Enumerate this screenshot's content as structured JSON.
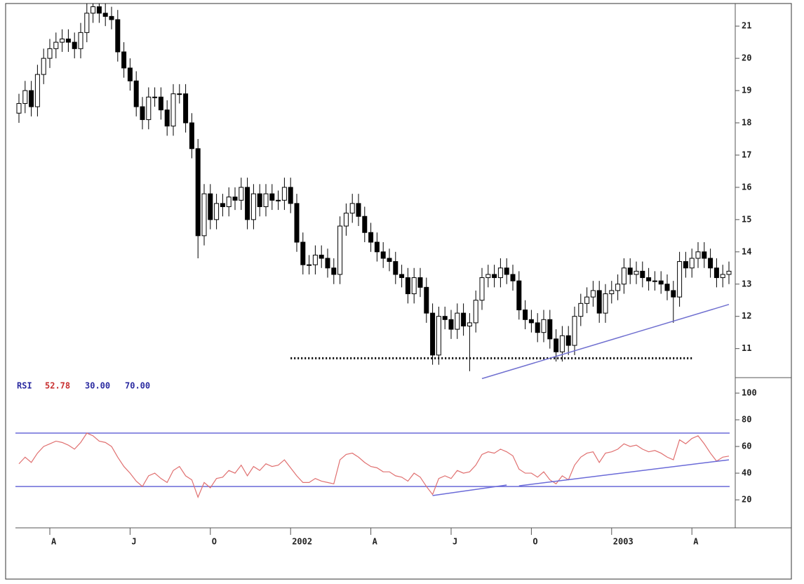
{
  "chart_data": [
    {
      "type": "candlestick",
      "categories": [
        null,
        null,
        null,
        null,
        null,
        "A",
        null,
        null,
        null,
        null,
        null,
        null,
        null,
        null,
        null,
        null,
        null,
        null,
        "J",
        null,
        null,
        null,
        null,
        null,
        null,
        null,
        null,
        null,
        null,
        null,
        null,
        "O",
        null,
        null,
        null,
        null,
        null,
        null,
        null,
        null,
        null,
        null,
        null,
        null,
        "2002",
        null,
        null,
        null,
        null,
        null,
        null,
        null,
        null,
        null,
        null,
        null,
        null,
        "A",
        null,
        null,
        null,
        null,
        null,
        null,
        null,
        null,
        null,
        null,
        null,
        null,
        "J",
        null,
        null,
        null,
        null,
        null,
        null,
        null,
        null,
        null,
        null,
        null,
        null,
        "O",
        null,
        null,
        null,
        null,
        null,
        null,
        null,
        null,
        null,
        null,
        null,
        null,
        "2003",
        null,
        null,
        null,
        null,
        null,
        null,
        null,
        null,
        null,
        null,
        null,
        null,
        "A",
        null,
        null,
        null,
        null,
        null,
        null
      ],
      "open": [
        18.3,
        18.6,
        19.0,
        18.5,
        19.5,
        20.0,
        20.3,
        20.5,
        20.6,
        20.5,
        20.3,
        20.8,
        21.4,
        21.6,
        21.4,
        21.3,
        21.2,
        20.2,
        19.7,
        19.3,
        18.5,
        18.1,
        18.8,
        18.8,
        18.4,
        17.9,
        18.9,
        18.9,
        18.0,
        17.2,
        14.5,
        15.8,
        15.0,
        15.5,
        15.4,
        15.7,
        15.6,
        16.0,
        15.0,
        15.8,
        15.4,
        15.8,
        15.6,
        15.6,
        16.0,
        15.5,
        14.3,
        13.6,
        13.6,
        13.9,
        13.8,
        13.5,
        13.3,
        14.8,
        15.2,
        15.5,
        15.1,
        14.6,
        14.3,
        14.0,
        13.8,
        13.7,
        13.3,
        13.2,
        12.7,
        13.2,
        12.9,
        12.1,
        10.8,
        12.0,
        11.9,
        11.6,
        12.1,
        11.7,
        11.8,
        12.5,
        13.2,
        13.3,
        13.2,
        13.5,
        13.3,
        13.1,
        12.2,
        11.9,
        11.8,
        11.5,
        11.9,
        11.3,
        10.9,
        11.4,
        11.1,
        12.0,
        12.4,
        12.6,
        12.8,
        12.1,
        12.7,
        12.8,
        13.0,
        13.5,
        13.3,
        13.4,
        13.2,
        13.1,
        13.1,
        13.0,
        12.8,
        12.6,
        13.7,
        13.5,
        13.8,
        14.0,
        13.8,
        13.5,
        13.2,
        13.3
      ],
      "high": [
        18.9,
        19.3,
        19.3,
        19.8,
        20.3,
        20.6,
        20.8,
        20.9,
        20.9,
        20.8,
        21.1,
        21.7,
        21.7,
        21.7,
        21.7,
        21.6,
        21.5,
        20.5,
        20.0,
        19.6,
        18.8,
        19.1,
        19.1,
        19.1,
        18.7,
        19.2,
        19.2,
        19.2,
        18.3,
        17.5,
        16.1,
        16.1,
        15.8,
        15.8,
        16.0,
        16.0,
        16.3,
        16.3,
        16.1,
        16.1,
        16.1,
        16.1,
        15.9,
        16.3,
        16.3,
        15.8,
        14.6,
        13.9,
        14.2,
        14.2,
        14.1,
        13.8,
        15.1,
        15.5,
        15.8,
        15.8,
        15.4,
        14.9,
        14.6,
        14.3,
        14.1,
        14.0,
        13.6,
        13.5,
        13.5,
        13.5,
        13.2,
        12.4,
        12.3,
        12.3,
        12.2,
        12.4,
        12.4,
        12.1,
        12.8,
        13.5,
        13.6,
        13.6,
        13.8,
        13.8,
        13.6,
        13.4,
        12.5,
        12.2,
        12.1,
        12.2,
        12.2,
        11.6,
        11.7,
        11.7,
        12.3,
        12.7,
        12.9,
        13.1,
        13.1,
        13.0,
        13.1,
        13.3,
        13.8,
        13.8,
        13.7,
        13.7,
        13.5,
        13.4,
        13.4,
        13.3,
        13.1,
        14.0,
        14.0,
        14.1,
        14.3,
        14.3,
        14.1,
        13.8,
        13.6,
        13.7
      ],
      "low": [
        18.0,
        18.3,
        18.2,
        18.2,
        19.2,
        19.7,
        20.0,
        20.2,
        20.2,
        20.0,
        20.0,
        20.5,
        21.1,
        21.1,
        21.0,
        20.9,
        19.9,
        19.4,
        19.0,
        18.2,
        17.8,
        17.8,
        18.5,
        18.1,
        17.6,
        17.6,
        18.6,
        17.7,
        16.9,
        13.8,
        14.2,
        14.7,
        14.7,
        15.1,
        15.1,
        15.3,
        15.3,
        14.7,
        14.7,
        15.1,
        15.1,
        15.3,
        15.3,
        15.3,
        15.2,
        14.0,
        13.3,
        13.3,
        13.3,
        13.5,
        13.2,
        13.0,
        13.0,
        14.5,
        14.9,
        14.8,
        14.3,
        14.0,
        13.7,
        13.5,
        13.4,
        13.0,
        12.9,
        12.4,
        12.4,
        12.6,
        11.8,
        10.5,
        10.5,
        11.6,
        11.3,
        11.3,
        11.4,
        10.3,
        11.5,
        12.2,
        12.9,
        12.9,
        12.9,
        13.0,
        12.8,
        11.9,
        11.6,
        11.5,
        11.2,
        11.2,
        11.0,
        10.6,
        10.6,
        10.8,
        10.8,
        11.7,
        12.1,
        12.3,
        11.8,
        11.8,
        12.4,
        12.5,
        12.7,
        13.0,
        13.0,
        12.9,
        12.8,
        12.8,
        12.7,
        12.5,
        11.8,
        12.3,
        13.2,
        13.2,
        13.5,
        13.5,
        13.2,
        12.9,
        12.9,
        13.0
      ],
      "close": [
        18.6,
        19.0,
        18.5,
        19.5,
        20.0,
        20.3,
        20.5,
        20.6,
        20.5,
        20.3,
        20.8,
        21.4,
        21.6,
        21.4,
        21.3,
        21.2,
        20.2,
        19.7,
        19.3,
        18.5,
        18.1,
        18.8,
        18.8,
        18.4,
        17.9,
        18.9,
        18.9,
        18.0,
        17.2,
        14.5,
        15.8,
        15.0,
        15.5,
        15.4,
        15.7,
        15.6,
        16.0,
        15.0,
        15.8,
        15.4,
        15.8,
        15.6,
        15.6,
        16.0,
        15.5,
        14.3,
        13.6,
        13.6,
        13.9,
        13.8,
        13.5,
        13.3,
        14.8,
        15.2,
        15.5,
        15.1,
        14.6,
        14.3,
        14.0,
        13.8,
        13.7,
        13.3,
        13.2,
        12.7,
        13.2,
        12.9,
        12.1,
        10.8,
        12.0,
        11.9,
        11.6,
        12.1,
        11.7,
        11.8,
        12.5,
        13.2,
        13.3,
        13.2,
        13.5,
        13.3,
        13.1,
        12.2,
        11.9,
        11.8,
        11.5,
        11.9,
        11.3,
        10.9,
        11.4,
        11.1,
        12.0,
        12.4,
        12.6,
        12.8,
        12.1,
        12.7,
        12.8,
        13.0,
        13.5,
        13.3,
        13.4,
        13.2,
        13.1,
        13.1,
        13.0,
        12.8,
        12.6,
        13.7,
        13.5,
        13.8,
        14.0,
        13.8,
        13.5,
        13.2,
        13.3,
        13.4
      ],
      "up_color": "#ffffff",
      "down_color": "#000000",
      "ylim": [
        10.1,
        21.7
      ],
      "yticks": [
        11,
        12,
        13,
        14,
        15,
        16,
        17,
        18,
        19,
        20,
        21
      ],
      "lines": [
        {
          "x": [
            44,
            109
          ],
          "y": [
            10.7,
            10.7
          ],
          "style": "dotted",
          "color": "#000000"
        },
        {
          "x": [
            75,
            115
          ],
          "y": [
            10.07,
            12.37
          ],
          "style": "solid",
          "color": "#7070d0"
        }
      ]
    },
    {
      "type": "line",
      "series": [
        {
          "name": "RSI",
          "color": "#e07070",
          "values": [
            47,
            52,
            48,
            55,
            60,
            62,
            64,
            63,
            61,
            58,
            63,
            70,
            68,
            64,
            63,
            60,
            52,
            45,
            40,
            34,
            30,
            38,
            40,
            36,
            33,
            42,
            45,
            38,
            35,
            22,
            33,
            29,
            36,
            37,
            42,
            40,
            46,
            38,
            45,
            42,
            47,
            45,
            46,
            50,
            44,
            38,
            33,
            33,
            36,
            34,
            33,
            32,
            50,
            54,
            55,
            52,
            48,
            45,
            44,
            41,
            41,
            38,
            37,
            34,
            40,
            37,
            30,
            24,
            36,
            38,
            36,
            42,
            40,
            41,
            46,
            54,
            56,
            55,
            58,
            56,
            53,
            43,
            40,
            40,
            37,
            41,
            35,
            32,
            38,
            35,
            46,
            52,
            55,
            56,
            48,
            55,
            56,
            58,
            62,
            60,
            61,
            58,
            56,
            57,
            55,
            52,
            50,
            65,
            62,
            66,
            68,
            62,
            55,
            49,
            52,
            52.78
          ]
        }
      ],
      "name_color": "#2a2aa0",
      "value_color": "#c83030",
      "levels": [
        {
          "value": 30,
          "label": "30.00"
        },
        {
          "value": 70,
          "label": "70.00"
        }
      ],
      "level_color": "#6a6ad8",
      "ylim": [
        -1,
        111.6
      ],
      "yticks": [
        20,
        40,
        60,
        80,
        100
      ],
      "lines": [
        {
          "x": [
            67,
            79
          ],
          "y": [
            23.2,
            31.1
          ],
          "color": "#6a6ad8"
        },
        {
          "x": [
            81,
            115
          ],
          "y": [
            30.5,
            50
          ],
          "color": "#6a6ad8"
        }
      ]
    }
  ]
}
